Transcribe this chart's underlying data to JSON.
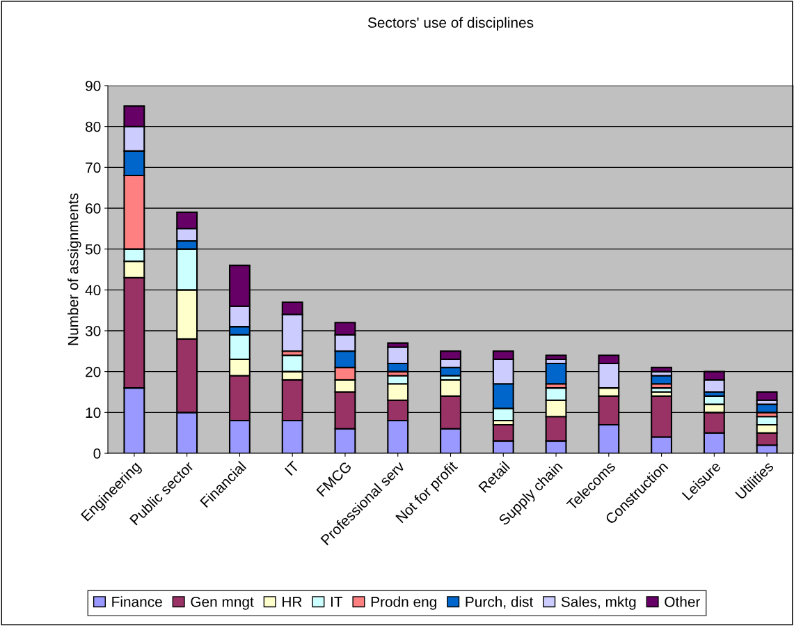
{
  "chart_data": {
    "type": "bar",
    "stacked": true,
    "title": "Sectors' use of disciplines",
    "ylabel": "Number of assignments",
    "categories": [
      "Engineering",
      "Public sector",
      "Financial",
      "IT",
      "FMCG",
      "Professional serv",
      "Not for profit",
      "Retail",
      "Supply chain",
      "Telecoms",
      "Construction",
      "Leisure",
      "Utilities"
    ],
    "series": [
      {
        "name": "Finance",
        "color": "#9999ff",
        "values": [
          16,
          10,
          8,
          8,
          6,
          8,
          6,
          3,
          3,
          7,
          4,
          5,
          2
        ]
      },
      {
        "name": "Gen mngt",
        "color": "#993366",
        "values": [
          27,
          18,
          11,
          10,
          9,
          5,
          8,
          4,
          6,
          7,
          10,
          5,
          3
        ]
      },
      {
        "name": "HR",
        "color": "#ffffcc",
        "values": [
          4,
          12,
          4,
          2,
          3,
          4,
          4,
          1,
          4,
          2,
          1,
          2,
          2
        ]
      },
      {
        "name": "IT",
        "color": "#ccffff",
        "values": [
          3,
          10,
          6,
          4,
          0,
          2,
          1,
          3,
          3,
          0,
          1,
          2,
          2
        ]
      },
      {
        "name": "Prodn eng",
        "color": "#ff8080",
        "values": [
          18,
          0,
          0,
          1,
          3,
          1,
          0,
          0,
          1,
          0,
          1,
          0,
          1
        ]
      },
      {
        "name": "Purch, dist",
        "color": "#0066cc",
        "values": [
          6,
          2,
          2,
          0,
          4,
          2,
          2,
          6,
          5,
          0,
          2,
          1,
          2
        ]
      },
      {
        "name": "Sales, mktg",
        "color": "#ccccff",
        "values": [
          6,
          3,
          5,
          9,
          4,
          4,
          2,
          6,
          1,
          6,
          1,
          3,
          1
        ]
      },
      {
        "name": "Other",
        "color": "#660066",
        "values": [
          5,
          4,
          10,
          3,
          3,
          1,
          2,
          2,
          1,
          2,
          1,
          2,
          2
        ]
      }
    ],
    "ylim": [
      0,
      90
    ],
    "yticks": [
      0,
      10,
      20,
      30,
      40,
      50,
      60,
      70,
      80,
      90
    ],
    "grid": "y",
    "legend": "bottom"
  }
}
